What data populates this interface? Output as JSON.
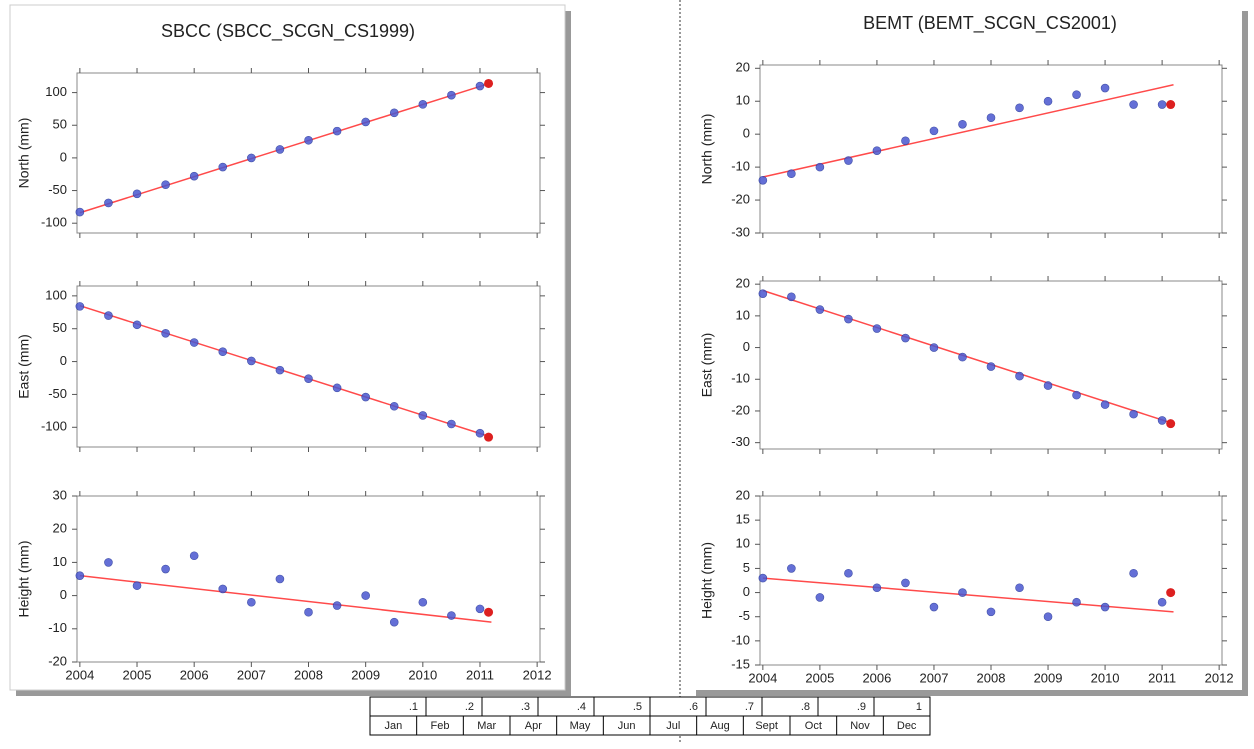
{
  "chart_data": [
    {
      "type": "scatter",
      "title": "SBCC (SBCC_SCGN_CS1999)",
      "y_label": "North (mm)",
      "xlim": [
        2003.95,
        2012.05
      ],
      "ylim": [
        -115,
        130
      ],
      "yticks": [
        -100,
        -50,
        0,
        50,
        100
      ],
      "observations": {
        "color": "#4a57d0",
        "x": [
          2004,
          2004.5,
          2005,
          2005.5,
          2006,
          2006.5,
          2007,
          2007.5,
          2008,
          2008.5,
          2009,
          2009.5,
          2010,
          2010.5,
          2011
        ],
        "values": [
          -83,
          -69,
          -55,
          -41,
          -28,
          -14,
          0,
          13,
          27,
          41,
          55,
          69,
          82,
          96,
          110
        ]
      },
      "trend": {
        "color": "#ff4a4a",
        "x": [
          2004,
          2011.2
        ],
        "values": [
          -84,
          115
        ]
      },
      "last_epoch": {
        "color": "#dd2020",
        "x": [
          2011.15
        ],
        "values": [
          114
        ]
      }
    },
    {
      "type": "scatter",
      "y_label": "East (mm)",
      "xlim": [
        2003.95,
        2012.05
      ],
      "ylim": [
        -130,
        115
      ],
      "yticks": [
        -100,
        -50,
        0,
        50,
        100
      ],
      "observations": {
        "color": "#4a57d0",
        "x": [
          2004,
          2004.5,
          2005,
          2005.5,
          2006,
          2006.5,
          2007,
          2007.5,
          2008,
          2008.5,
          2009,
          2009.5,
          2010,
          2010.5,
          2011
        ],
        "values": [
          84,
          70,
          56,
          43,
          29,
          15,
          1,
          -13,
          -26,
          -40,
          -54,
          -68,
          -82,
          -95,
          -109
        ]
      },
      "trend": {
        "color": "#ff4a4a",
        "x": [
          2004,
          2011.2
        ],
        "values": [
          85,
          -115
        ]
      },
      "last_epoch": {
        "color": "#dd2020",
        "x": [
          2011.15
        ],
        "values": [
          -115
        ]
      }
    },
    {
      "type": "scatter",
      "y_label": "Height (mm)",
      "xlim": [
        2003.95,
        2012.05
      ],
      "ylim": [
        -20,
        30
      ],
      "yticks": [
        -20,
        -10,
        0,
        10,
        20,
        30
      ],
      "xticks": [
        2004,
        2005,
        2006,
        2007,
        2008,
        2009,
        2010,
        2011,
        2012
      ],
      "observations": {
        "color": "#4a57d0",
        "x": [
          2004,
          2004.5,
          2005,
          2005.5,
          2006,
          2006.5,
          2007,
          2007.5,
          2008,
          2008.5,
          2009,
          2009.5,
          2010,
          2010.5,
          2011
        ],
        "values": [
          6,
          10,
          3,
          8,
          12,
          2,
          -2,
          5,
          -5,
          -3,
          0,
          -8,
          -2,
          -6,
          -4
        ]
      },
      "trend": {
        "color": "#ff4a4a",
        "x": [
          2004,
          2011.2
        ],
        "values": [
          6,
          -8
        ]
      },
      "last_epoch": {
        "color": "#dd2020",
        "x": [
          2011.15
        ],
        "values": [
          -5
        ]
      }
    },
    {
      "type": "scatter",
      "title": "BEMT (BEMT_SCGN_CS2001)",
      "y_label": "North (mm)",
      "xlim": [
        2003.95,
        2012.05
      ],
      "ylim": [
        -30,
        21
      ],
      "yticks": [
        -30,
        -20,
        -10,
        0,
        10,
        20
      ],
      "observations": {
        "color": "#4a57d0",
        "x": [
          2004,
          2004.5,
          2005,
          2005.5,
          2006,
          2006.5,
          2007,
          2007.5,
          2008,
          2008.5,
          2009,
          2009.5,
          2010,
          2010.5,
          2011
        ],
        "values": [
          -14,
          -12,
          -10,
          -8,
          -5,
          -2,
          1,
          3,
          5,
          8,
          10,
          12,
          14,
          9,
          9
        ]
      },
      "trend": {
        "color": "#ff4a4a",
        "x": [
          2004,
          2011.2
        ],
        "values": [
          -13,
          15
        ]
      },
      "last_epoch": {
        "color": "#dd2020",
        "x": [
          2011.15
        ],
        "values": [
          9
        ]
      }
    },
    {
      "type": "scatter",
      "y_label": "East (mm)",
      "xlim": [
        2003.95,
        2012.05
      ],
      "ylim": [
        -32,
        21
      ],
      "yticks": [
        -30,
        -20,
        -10,
        0,
        10,
        20
      ],
      "observations": {
        "color": "#4a57d0",
        "x": [
          2004,
          2004.5,
          2005,
          2005.5,
          2006,
          2006.5,
          2007,
          2007.5,
          2008,
          2008.5,
          2009,
          2009.5,
          2010,
          2010.5,
          2011
        ],
        "values": [
          17,
          16,
          12,
          9,
          6,
          3,
          0,
          -3,
          -6,
          -9,
          -12,
          -15,
          -18,
          -21,
          -23
        ]
      },
      "trend": {
        "color": "#ff4a4a",
        "x": [
          2004,
          2011.2
        ],
        "values": [
          18,
          -24
        ]
      },
      "last_epoch": {
        "color": "#dd2020",
        "x": [
          2011.15
        ],
        "values": [
          -24
        ]
      }
    },
    {
      "type": "scatter",
      "y_label": "Height (mm)",
      "xlim": [
        2003.95,
        2012.05
      ],
      "ylim": [
        -15,
        20
      ],
      "yticks": [
        -15,
        -10,
        -5,
        0,
        5,
        10,
        15,
        20
      ],
      "xticks": [
        2004,
        2005,
        2006,
        2007,
        2008,
        2009,
        2010,
        2011,
        2012
      ],
      "observations": {
        "color": "#4a57d0",
        "x": [
          2004,
          2004.5,
          2005,
          2005.5,
          2006,
          2006.5,
          2007,
          2007.5,
          2008,
          2008.5,
          2009,
          2009.5,
          2010,
          2010.5,
          2011
        ],
        "values": [
          3,
          5,
          -1,
          4,
          1,
          2,
          -3,
          0,
          -4,
          1,
          -5,
          -2,
          -3,
          4,
          -2
        ]
      },
      "trend": {
        "color": "#ff4a4a",
        "x": [
          2004,
          2011.2
        ],
        "values": [
          3,
          -4
        ]
      },
      "last_epoch": {
        "color": "#dd2020",
        "x": [
          2011.15
        ],
        "values": [
          0
        ]
      }
    }
  ],
  "scale_table": {
    "fractions": [
      ".1",
      ".2",
      ".3",
      ".4",
      ".5",
      ".6",
      ".7",
      ".8",
      ".9",
      "1"
    ],
    "months": [
      "Jan",
      "Feb",
      "Mar",
      "Apr",
      "May",
      "Jun",
      "Jul",
      "Aug",
      "Sept",
      "Oct",
      "Nov",
      "Dec"
    ]
  }
}
